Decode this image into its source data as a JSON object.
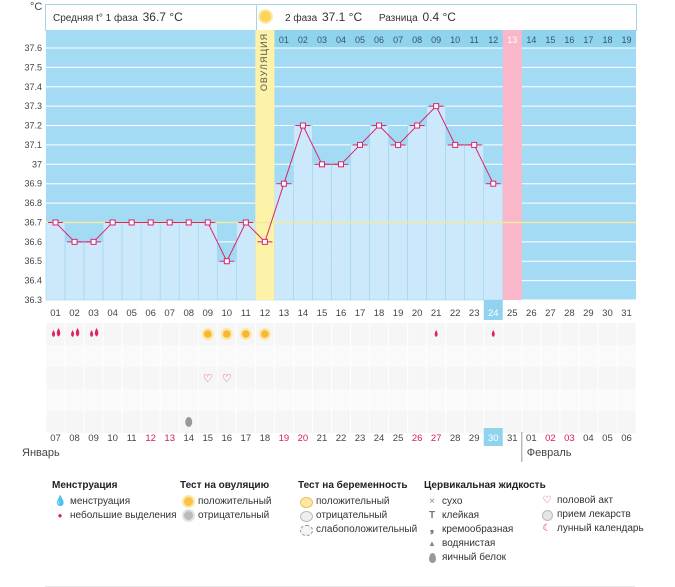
{
  "header": {
    "unit": "°C",
    "phase1_label": "Средняя t° 1 фаза",
    "phase1_value": "36.7 °C",
    "phase2_label": "2 фаза",
    "phase2_value": "37.1 °C",
    "diff_label": "Разница",
    "diff_value": "0.4 °C"
  },
  "ovulation_label": "ОВУЛЯЦИЯ",
  "colors": {
    "sky": "#a3dbf5",
    "bar": "#cbe9fb",
    "bar_edge": "#9ed3ef",
    "line": "#d8246e",
    "ovulation": "#fdf3a8",
    "period": "#f9b7c9",
    "baseline": "#f2eaa0",
    "highlight": "#8fd3ee",
    "red_date": "#d81c4d",
    "grid": "#ffffff"
  },
  "chart_data": {
    "type": "line",
    "title": "Базальная температура",
    "ylabel": "°C",
    "ylim": [
      36.3,
      37.6
    ],
    "y_ticks": [
      "36.3",
      "36.4",
      "36.5",
      "36.6",
      "36.7",
      "36.8",
      "36.9",
      "37",
      "37.1",
      "37.2",
      "37.3",
      "37.4",
      "37.5",
      "37.6"
    ],
    "categories": [
      "01",
      "02",
      "03",
      "04",
      "05",
      "06",
      "07",
      "08",
      "09",
      "10",
      "11",
      "12",
      "13",
      "14",
      "15",
      "16",
      "17",
      "18",
      "19",
      "20",
      "21",
      "22",
      "23",
      "24",
      "25",
      "26",
      "27",
      "28",
      "29",
      "30",
      "31"
    ],
    "values": [
      36.7,
      36.6,
      36.6,
      36.7,
      36.7,
      36.7,
      36.7,
      36.7,
      36.7,
      36.5,
      36.7,
      36.6,
      36.9,
      37.2,
      37.0,
      37.0,
      37.1,
      37.2,
      37.1,
      37.2,
      37.3,
      37.1,
      37.1,
      36.9,
      null,
      null,
      null,
      null,
      null,
      null,
      null
    ],
    "baseline": 36.7,
    "ovulation_day": "12",
    "second_phase_days": [
      "01",
      "02",
      "03",
      "04",
      "05",
      "06",
      "07",
      "08",
      "09",
      "10",
      "11",
      "12",
      "13",
      "14",
      "15",
      "16",
      "17",
      "18",
      "19"
    ],
    "second_phase_highlight": "13",
    "current_cycle_day": "24",
    "dates": [
      "07",
      "08",
      "09",
      "10",
      "11",
      "12",
      "13",
      "14",
      "15",
      "16",
      "17",
      "18",
      "19",
      "20",
      "21",
      "22",
      "23",
      "24",
      "25",
      "26",
      "27",
      "28",
      "29",
      "30",
      "31",
      "01",
      "02",
      "03",
      "04",
      "05",
      "06"
    ],
    "red_dates": [
      "12",
      "13",
      "19",
      "20",
      "26",
      "27",
      "02",
      "03"
    ],
    "current_date": "30",
    "month_left": "Январь",
    "month_right": "Февраль",
    "markers": {
      "menstruation": [
        "01",
        "02",
        "03"
      ],
      "light_spotting": [
        "21",
        "24"
      ],
      "ovulation_test_positive": [
        "09",
        "10",
        "11",
        "12"
      ],
      "intercourse": [
        "09",
        "10"
      ],
      "egg_white": [
        "08"
      ]
    }
  },
  "legend": {
    "menstruation": {
      "title": "Менструация",
      "items": [
        "менструация",
        "небольшие выделения"
      ]
    },
    "ovulation_test": {
      "title": "Тест на овуляцию",
      "items": [
        "положительный",
        "отрицательный"
      ]
    },
    "pregnancy_test": {
      "title": "Тест на беременность",
      "items": [
        "положительный",
        "отрицательный",
        "слабоположительный"
      ]
    },
    "cervical": {
      "title": "Цервикальная жидкость",
      "items": [
        "сухо",
        "клейкая",
        "кремообразная",
        "водянистая",
        "яичный белок"
      ]
    },
    "other": {
      "items": [
        "половой акт",
        "прием лекарств",
        "лунный календарь"
      ]
    }
  },
  "icons": {
    "drop": "drop-icon",
    "sun": "sun-icon",
    "heart": "heart-icon",
    "egg": "egg-white-icon",
    "moon": "moon-icon",
    "pill": "pill-icon"
  }
}
